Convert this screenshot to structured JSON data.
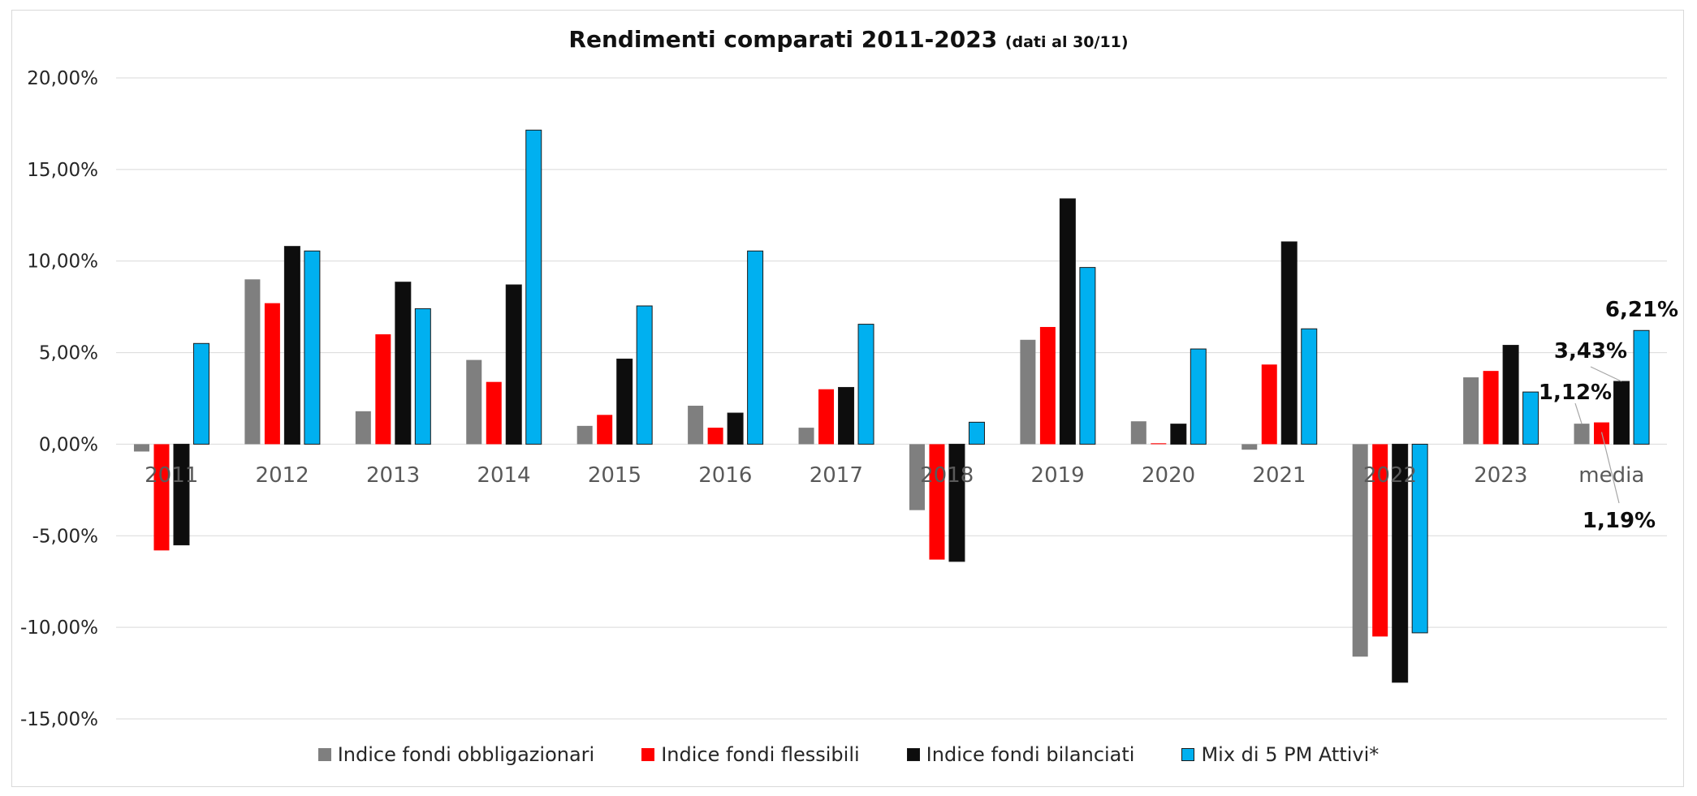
{
  "chart_data": {
    "type": "bar",
    "title": "Rendimenti comparati 2011-2023",
    "subtitle": "(dati al 30/11)",
    "categories": [
      "2011",
      "2012",
      "2013",
      "2014",
      "2015",
      "2016",
      "2017",
      "2018",
      "2019",
      "2020",
      "2021",
      "2022",
      "2023",
      "media"
    ],
    "series": [
      {
        "name": "Indice fondi obbligazionari",
        "color": "#7f7f7f",
        "values": [
          -0.4,
          9.0,
          1.8,
          4.6,
          1.0,
          2.1,
          0.9,
          -3.6,
          5.7,
          1.25,
          -0.3,
          -11.6,
          3.65,
          1.12
        ]
      },
      {
        "name": "Indice fondi flessibili",
        "color": "#ff0000",
        "values": [
          -5.8,
          7.7,
          6.0,
          3.4,
          1.6,
          0.9,
          3.0,
          -6.3,
          6.4,
          0.05,
          4.35,
          -10.5,
          4.0,
          1.19
        ]
      },
      {
        "name": "Indice fondi bilanciati",
        "color": "#0d0d0d",
        "values": [
          -5.5,
          10.8,
          8.85,
          8.7,
          4.65,
          1.7,
          3.1,
          -6.4,
          13.4,
          1.1,
          11.05,
          -13.0,
          5.4,
          3.43
        ]
      },
      {
        "name": "Mix di 5 PM Attivi*",
        "color": "#00b0f0",
        "values": [
          5.5,
          10.55,
          7.4,
          17.15,
          7.55,
          10.55,
          6.55,
          1.2,
          9.65,
          5.2,
          6.3,
          -10.3,
          2.85,
          6.21
        ]
      }
    ],
    "ylim": [
      -15,
      20
    ],
    "yticks": [
      20,
      15,
      10,
      5,
      0,
      -5,
      -10,
      -15
    ],
    "ytick_labels": [
      "20,00%",
      "15,00%",
      "10,00%",
      "5,00%",
      "0,00%",
      "-5,00%",
      "-10,00%",
      "-15,00%"
    ],
    "grid": true,
    "legend_position": "bottom",
    "annotations": [
      "1,12%",
      "1,19%",
      "3,43%",
      "6,21%"
    ],
    "xlabel": "",
    "ylabel": ""
  }
}
